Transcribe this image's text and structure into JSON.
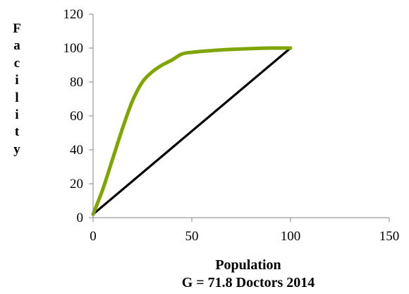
{
  "chart_data": {
    "type": "line",
    "xlabel": "Population",
    "ylabel_letters": [
      "F",
      "a",
      "c",
      "i",
      "l",
      "i",
      "t",
      "y"
    ],
    "caption": "G = 71.8 Doctors 2014",
    "xlim": [
      0,
      150
    ],
    "ylim": [
      0,
      120
    ],
    "x_ticks": [
      "0",
      "50",
      "100",
      "150"
    ],
    "y_ticks": [
      "0",
      "20",
      "40",
      "60",
      "80",
      "100",
      "120"
    ],
    "x_tick_values": [
      0,
      50,
      100,
      150
    ],
    "y_tick_values": [
      0,
      20,
      40,
      60,
      80,
      100,
      120
    ],
    "grid": false,
    "legend": "none",
    "series": [
      {
        "color": "#7fa600",
        "x": [
          0,
          5,
          10,
          15,
          20,
          25,
          30,
          35,
          40,
          45,
          50,
          60,
          70,
          80,
          90,
          100
        ],
        "y": [
          2,
          17,
          35,
          53,
          69,
          80,
          86,
          90,
          93,
          96.5,
          97.5,
          98.5,
          99.2,
          99.7,
          100,
          100
        ]
      },
      {
        "color": "#000000",
        "x": [
          0,
          100
        ],
        "y": [
          2,
          100
        ]
      }
    ]
  }
}
